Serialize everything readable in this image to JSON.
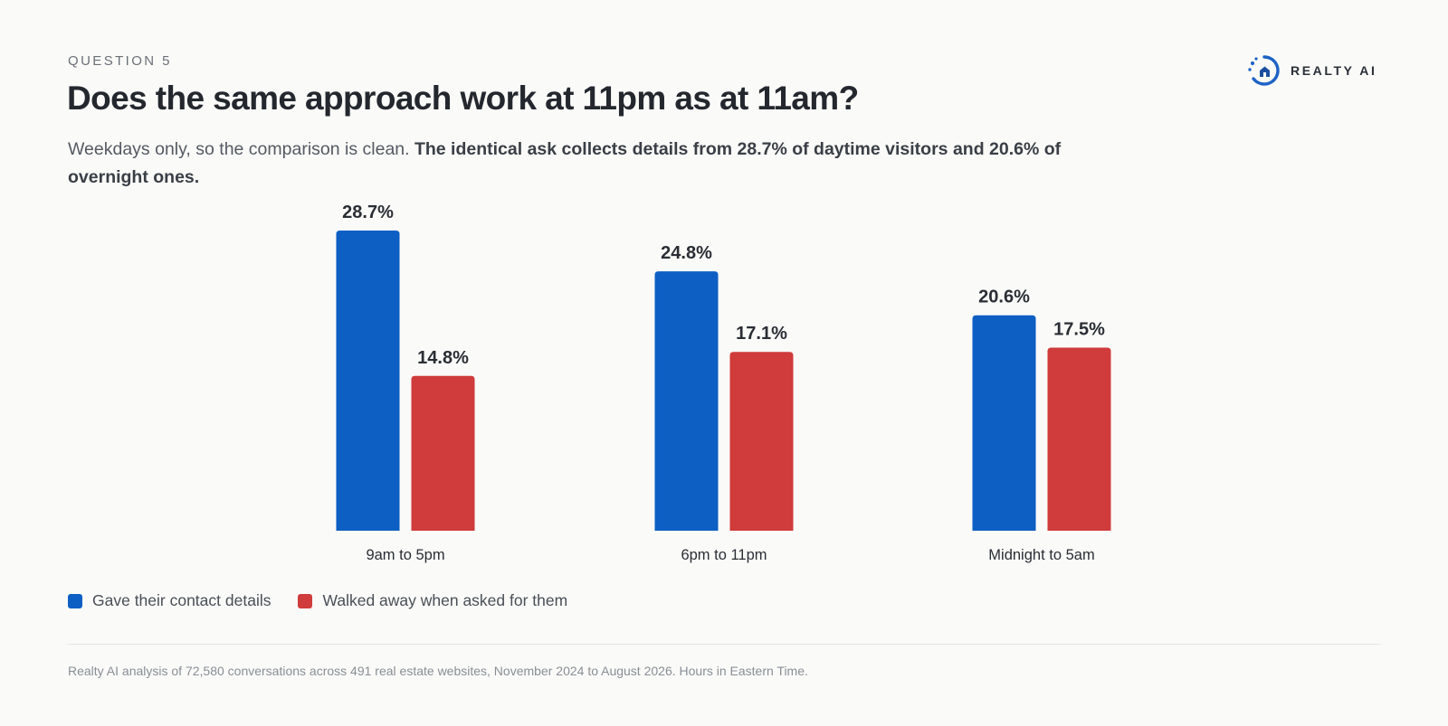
{
  "header": {
    "eyebrow": "QUESTION 5",
    "title": "Does the same approach work at 11pm as at 11am?",
    "subtitle_plain": "Weekdays only, so the comparison is clean. ",
    "subtitle_bold": "The identical ask collects details from 28.7% of daytime visitors and 20.6% of overnight ones."
  },
  "logo": {
    "text": "REALTY AI",
    "icon": "realty-ai-logo-icon"
  },
  "chart_data": {
    "type": "bar",
    "categories": [
      "9am to 5pm",
      "6pm to 11pm",
      "Midnight to 5am"
    ],
    "series": [
      {
        "name": "Gave their contact details",
        "values": [
          28.7,
          24.8,
          20.6
        ],
        "color": "#0d5fc4"
      },
      {
        "name": "Walked away when asked for them",
        "values": [
          14.8,
          17.1,
          17.5
        ],
        "color": "#d03b3b"
      }
    ],
    "value_suffix": "%",
    "ylim": [
      0,
      28.7
    ],
    "grid": false,
    "legend_position": "bottom-left"
  },
  "legend": {
    "items": [
      {
        "label": "Gave their contact details",
        "color": "#0d5fc4"
      },
      {
        "label": "Walked away when asked for them",
        "color": "#d03b3b"
      }
    ]
  },
  "footer": {
    "source": "Realty AI analysis of 72,580 conversations across 491 real estate websites, November 2024 to August 2026. Hours in Eastern Time."
  }
}
